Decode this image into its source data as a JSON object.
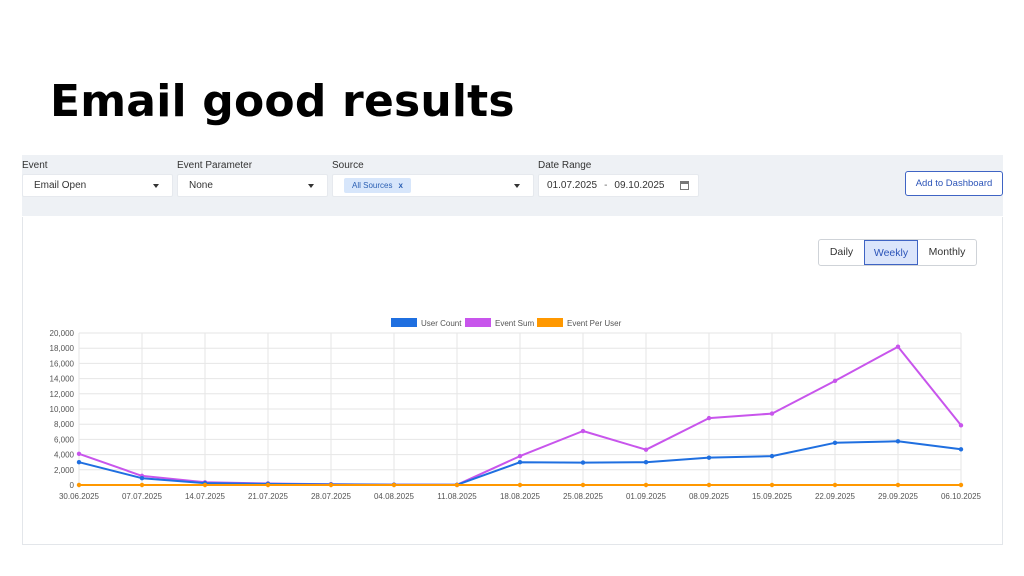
{
  "slide_title": "Email good results",
  "filters": {
    "event": {
      "label": "Event",
      "value": "Email Open"
    },
    "event_parameter": {
      "label": "Event Parameter",
      "value": "None"
    },
    "source": {
      "label": "Source",
      "chip": "All Sources",
      "chip_remove": "x"
    },
    "date_range": {
      "label": "Date Range",
      "start": "01.07.2025",
      "separator": "-",
      "end": "09.10.2025"
    }
  },
  "add_to_dashboard": "Add to Dashboard",
  "period": {
    "daily": "Daily",
    "weekly": "Weekly",
    "monthly": "Monthly",
    "selected": "weekly"
  },
  "icons": {
    "dropdown": "chevron-down-icon",
    "calendar": "calendar-icon",
    "remove": "close-icon"
  },
  "colors": {
    "user_count": "#1f6fe0",
    "event_sum": "#c855ec",
    "event_per_user": "#ff9800",
    "accent": "#3f64c4"
  },
  "chart_data": {
    "type": "line",
    "x": [
      "30.06.2025",
      "07.07.2025",
      "14.07.2025",
      "21.07.2025",
      "28.07.2025",
      "04.08.2025",
      "11.08.2025",
      "18.08.2025",
      "25.08.2025",
      "01.09.2025",
      "08.09.2025",
      "15.09.2025",
      "22.09.2025",
      "29.09.2025",
      "06.10.2025"
    ],
    "y_ticks": [
      "0",
      "2,000",
      "4,000",
      "6,000",
      "8,000",
      "10,000",
      "12,000",
      "14,000",
      "16,000",
      "18,000",
      "20,000"
    ],
    "ylim": [
      0,
      20000
    ],
    "grid": true,
    "legend_position": "top-center",
    "series": [
      {
        "name": "User Count",
        "color": "#1f6fe0",
        "values": [
          3000,
          900,
          250,
          150,
          80,
          40,
          20,
          3000,
          2950,
          3000,
          3600,
          3800,
          5550,
          5750,
          4700
        ]
      },
      {
        "name": "Event Sum",
        "color": "#c855ec",
        "values": [
          4100,
          1200,
          350,
          200,
          100,
          50,
          30,
          3800,
          7100,
          4650,
          8800,
          9400,
          13700,
          18200,
          7850
        ]
      },
      {
        "name": "Event Per User",
        "color": "#ff9800",
        "values": [
          1.4,
          1.3,
          1.4,
          1.3,
          1.3,
          1.2,
          1.5,
          1.3,
          2.4,
          1.6,
          2.4,
          2.5,
          2.5,
          3.2,
          1.7
        ]
      }
    ]
  }
}
